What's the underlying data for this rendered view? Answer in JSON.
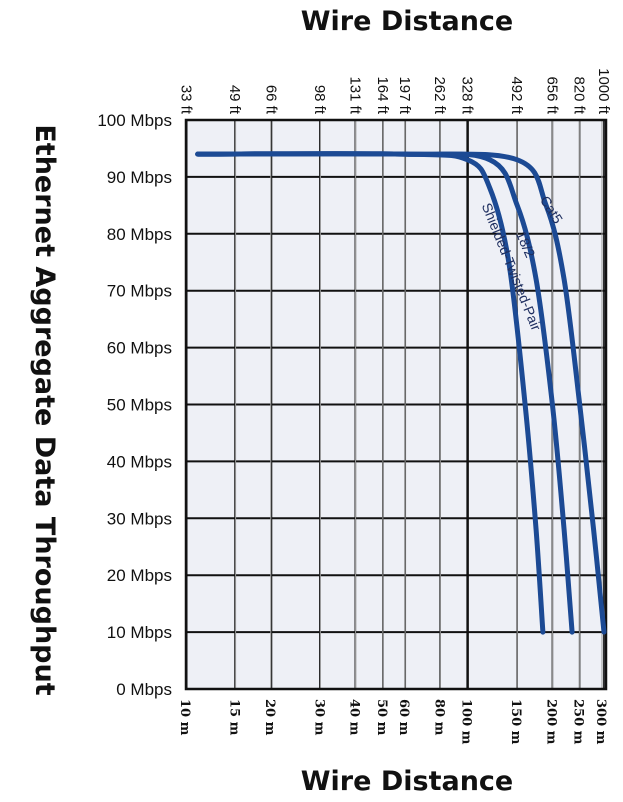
{
  "chart_data": {
    "type": "line",
    "title_top": "Wire Distance",
    "title_bottom": "Wire Distance",
    "ylabel": "Ethernet Aggregate Data Throughput",
    "y_ticks": [
      "0 Mbps",
      "10 Mbps",
      "20 Mbps",
      "30 Mbps",
      "40 Mbps",
      "50 Mbps",
      "60 Mbps",
      "70 Mbps",
      "80 Mbps",
      "90 Mbps",
      "100 Mbps"
    ],
    "ylim": [
      0,
      100
    ],
    "x_scale": "log",
    "xlim_m": [
      10,
      310
    ],
    "x_ticks_m": [
      {
        "value": 10,
        "label": "10 m"
      },
      {
        "value": 15,
        "label": "15 m"
      },
      {
        "value": 20,
        "label": "20 m"
      },
      {
        "value": 30,
        "label": "30 m"
      },
      {
        "value": 40,
        "label": "40 m"
      },
      {
        "value": 50,
        "label": "50 m"
      },
      {
        "value": 60,
        "label": "60 m"
      },
      {
        "value": 80,
        "label": "80 m"
      },
      {
        "value": 100,
        "label": "100 m"
      },
      {
        "value": 150,
        "label": "150 m"
      },
      {
        "value": 200,
        "label": "200 m"
      },
      {
        "value": 250,
        "label": "250 m"
      },
      {
        "value": 300,
        "label": "300 m"
      }
    ],
    "x_ticks_ft": [
      {
        "value": 33,
        "label": "33 ft"
      },
      {
        "value": 49,
        "label": "49 ft"
      },
      {
        "value": 66,
        "label": "66 ft"
      },
      {
        "value": 98,
        "label": "98 ft"
      },
      {
        "value": 131,
        "label": "131 ft"
      },
      {
        "value": 164,
        "label": "164 ft"
      },
      {
        "value": 197,
        "label": "197 ft"
      },
      {
        "value": 262,
        "label": "262 ft"
      },
      {
        "value": 328,
        "label": "328 ft"
      },
      {
        "value": 492,
        "label": "492 ft"
      },
      {
        "value": 656,
        "label": "656 ft"
      },
      {
        "value": 820,
        "label": "820 ft"
      },
      {
        "value": 1000,
        "label": "1000 ft"
      }
    ],
    "grid": true,
    "line_color": "#1c4a94",
    "series": [
      {
        "name": "Shielded-Twisted-Pair",
        "x": [
          11,
          60,
          100,
          120,
          140,
          160,
          175,
          185
        ],
        "y": [
          94,
          94,
          93,
          88,
          75,
          50,
          28,
          10
        ]
      },
      {
        "name": "18/2",
        "x": [
          11,
          60,
          120,
          150,
          175,
          200,
          220,
          235
        ],
        "y": [
          94,
          94,
          93,
          85,
          72,
          50,
          28,
          10
        ]
      },
      {
        "name": "Cat5",
        "x": [
          11,
          60,
          150,
          190,
          220,
          250,
          280,
          305
        ],
        "y": [
          94,
          94,
          93,
          85,
          72,
          50,
          28,
          10
        ]
      }
    ]
  }
}
